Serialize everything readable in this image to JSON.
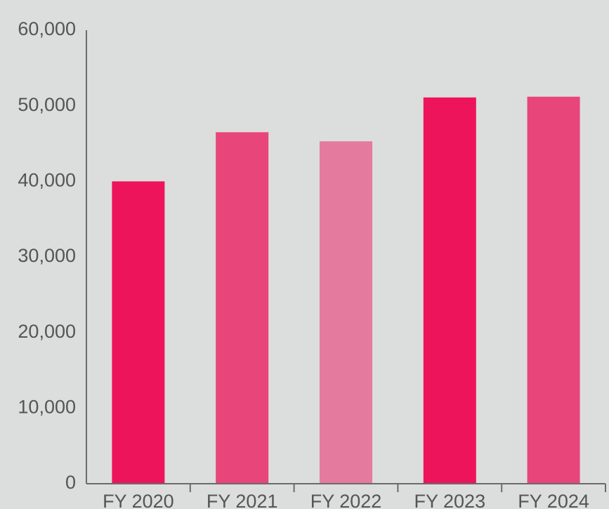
{
  "chart_data": {
    "type": "bar",
    "categories": [
      "FY 2020",
      "FY 2021",
      "FY 2022",
      "FY 2023",
      "FY 2024"
    ],
    "values": [
      40000,
      46500,
      45300,
      51100,
      51200
    ],
    "colors": [
      "#ed145b",
      "#e8457a",
      "#e47a9e",
      "#ed145b",
      "#e8457a"
    ],
    "ylim": [
      0,
      60000
    ],
    "yticks": [
      0,
      {
        "value": 10000,
        "label": "10,000"
      },
      {
        "value": 20000,
        "label": "20,000"
      },
      {
        "value": 30000,
        "label": "30,000"
      },
      {
        "value": 40000,
        "label": "40,000"
      },
      {
        "value": 50000,
        "label": "50,000"
      },
      {
        "value": 60000,
        "label": "60,000"
      }
    ],
    "grid": false
  }
}
